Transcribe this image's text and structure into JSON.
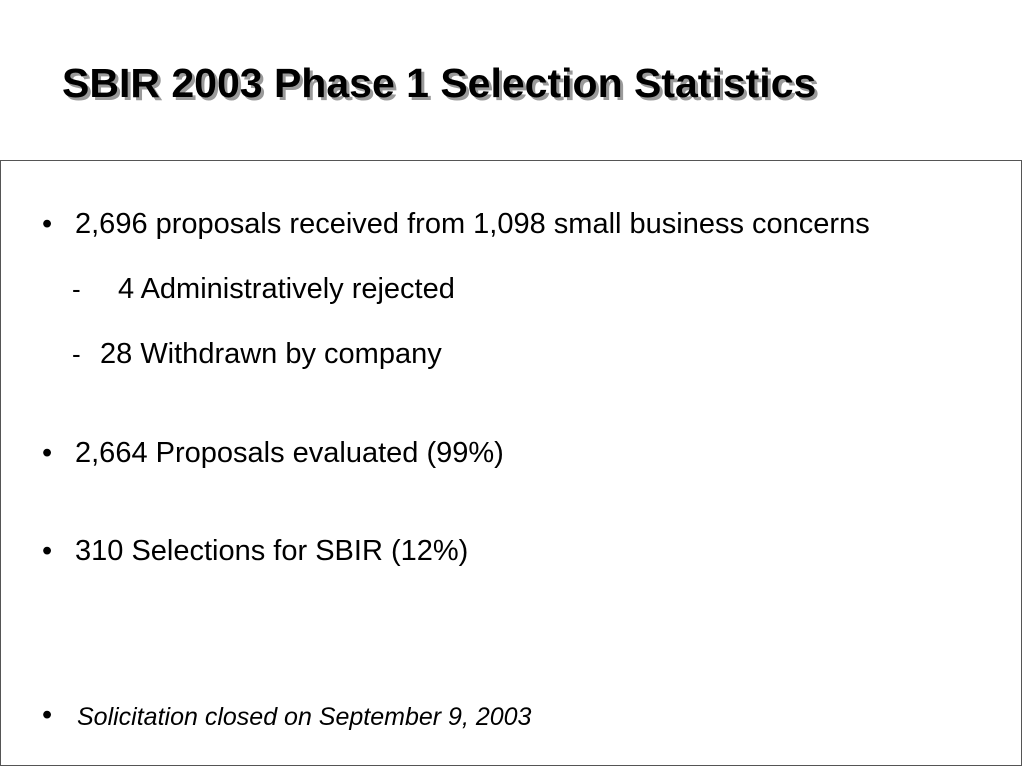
{
  "slide": {
    "title": "SBIR 2003 Phase 1 Selection Statistics",
    "bullet_symbol": "•",
    "dash_symbol": "-",
    "items": [
      {
        "text": "2,696 proposals received from 1,098 small business concerns"
      },
      {
        "text": "4  Administratively rejected"
      },
      {
        "text": "28  Withdrawn by company"
      },
      {
        "text": "2,664  Proposals evaluated (99%)"
      },
      {
        "text": "310  Selections for SBIR (12%)"
      },
      {
        "text": "Solicitation closed on September 9, 2003"
      }
    ]
  }
}
